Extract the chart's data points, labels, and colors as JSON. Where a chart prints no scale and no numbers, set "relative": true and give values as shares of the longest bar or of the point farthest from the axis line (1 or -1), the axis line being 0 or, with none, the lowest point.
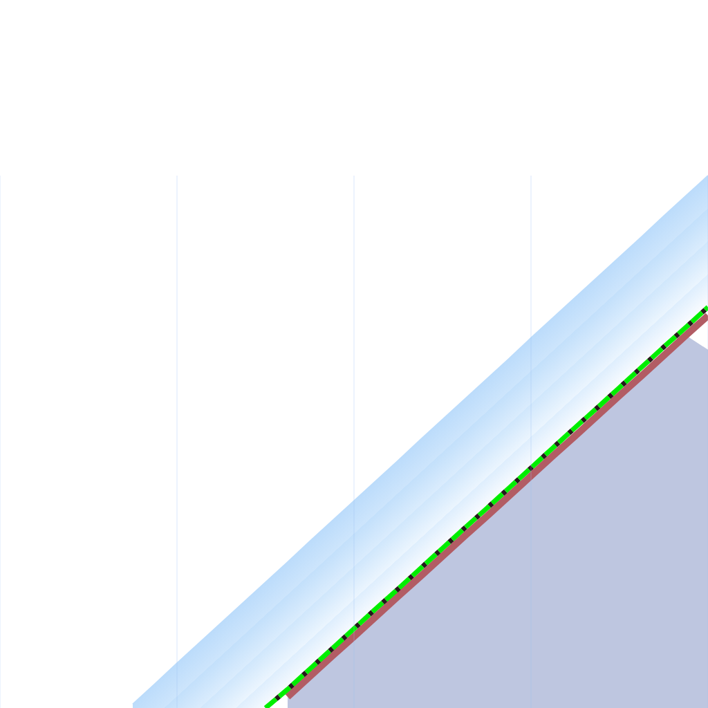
{
  "chart_data": {
    "type": "line",
    "relative": true,
    "grid": "x",
    "categories": [
      null,
      null,
      null,
      null,
      null,
      null,
      null,
      null,
      null,
      null,
      null,
      null,
      null,
      null,
      null,
      null,
      null,
      null,
      null,
      null,
      null,
      null,
      null,
      null,
      null,
      null,
      null,
      null,
      null,
      null,
      null,
      null,
      null
    ],
    "series": [
      {
        "type": "area",
        "color": "#bec6e0",
        "values": [
          null,
          null,
          null,
          null,
          null,
          null,
          null,
          null,
          null,
          null,
          null,
          null,
          null,
          0.021,
          0.059,
          0.097,
          0.134,
          0.172,
          0.21,
          0.247,
          0.285,
          0.323,
          0.36,
          0.398,
          0.436,
          0.474,
          0.511,
          0.549,
          0.587,
          0.624,
          0.662,
          0.7,
          0.673
        ]
      },
      {
        "color": "#bcdcfb",
        "values": [
          null,
          null,
          null,
          null,
          null,
          null,
          0.007,
          0.045,
          0.084,
          0.122,
          0.16,
          0.198,
          0.236,
          0.274,
          0.313,
          0.351,
          0.389,
          0.427,
          0.465,
          0.504,
          0.542,
          0.58,
          0.618,
          0.656,
          0.695,
          0.733,
          0.771,
          0.809,
          0.847,
          0.885,
          0.924,
          0.962,
          1
        ],
        "lower": [
          null,
          null,
          null,
          null,
          null,
          null,
          0,
          0,
          0,
          0,
          0,
          0,
          0,
          0.035,
          0.073,
          0.111,
          0.149,
          0.187,
          0.224,
          0.262,
          0.3,
          0.338,
          0.375,
          0.413,
          0.451,
          0.489,
          0.527,
          0.564,
          0.602,
          0.64,
          0.678,
          0.715,
          0.753
        ],
        "upper": [
          null,
          null,
          null,
          null,
          null,
          null,
          0.007,
          0.045,
          0.084,
          0.122,
          0.16,
          0.198,
          0.236,
          0.274,
          0.313,
          0.351,
          0.389,
          0.427,
          0.465,
          0.504,
          0.542,
          0.58,
          0.618,
          0.656,
          0.695,
          0.733,
          0.771,
          0.809,
          0.847,
          0.885,
          0.924,
          0.962,
          1
        ]
      },
      {
        "color": "#b25c64",
        "values": [
          null,
          null,
          null,
          null,
          null,
          null,
          null,
          null,
          null,
          null,
          null,
          null,
          null,
          0.021,
          0.059,
          0.097,
          0.134,
          0.172,
          0.21,
          0.247,
          0.285,
          0.323,
          0.36,
          0.398,
          0.436,
          0.474,
          0.511,
          0.549,
          0.587,
          0.624,
          0.662,
          0.7,
          0.737
        ]
      },
      {
        "color": "#231a1a",
        "line_style": "dashed",
        "values": [
          null,
          null,
          null,
          null,
          null,
          null,
          null,
          null,
          null,
          null,
          null,
          null,
          0,
          0.035,
          0.073,
          0.111,
          0.149,
          0.187,
          0.224,
          0.262,
          0.3,
          0.338,
          0.375,
          0.413,
          0.451,
          0.489,
          0.527,
          0.564,
          0.602,
          0.64,
          0.678,
          0.715,
          0.753
        ]
      },
      {
        "color": "#00ee00",
        "line_style": "dashed",
        "values": [
          null,
          null,
          null,
          null,
          null,
          null,
          null,
          null,
          null,
          null,
          null,
          null,
          0,
          0.035,
          0.073,
          0.111,
          0.149,
          0.187,
          0.224,
          0.262,
          0.3,
          0.338,
          0.375,
          0.413,
          0.451,
          0.489,
          0.527,
          0.564,
          0.602,
          0.64,
          0.678,
          0.715,
          0.753
        ]
      }
    ]
  }
}
